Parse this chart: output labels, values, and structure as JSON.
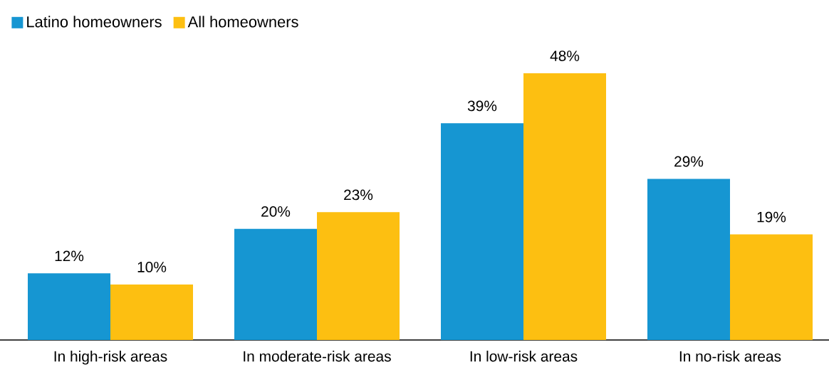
{
  "chart_data": {
    "type": "bar",
    "categories": [
      "In high-risk areas",
      "In moderate-risk areas",
      "In low-risk areas",
      "In no-risk areas"
    ],
    "series": [
      {
        "name": "Latino homeowners",
        "color": "#1696d2",
        "values": [
          12,
          20,
          39,
          29
        ],
        "value_labels": [
          "12%",
          "20%",
          "39%",
          "29%"
        ]
      },
      {
        "name": "All homeowners",
        "color": "#fdbf11",
        "values": [
          10,
          23,
          48,
          19
        ],
        "value_labels": [
          "10%",
          "23%",
          "48%",
          "19%"
        ]
      }
    ],
    "legend": "top left"
  }
}
